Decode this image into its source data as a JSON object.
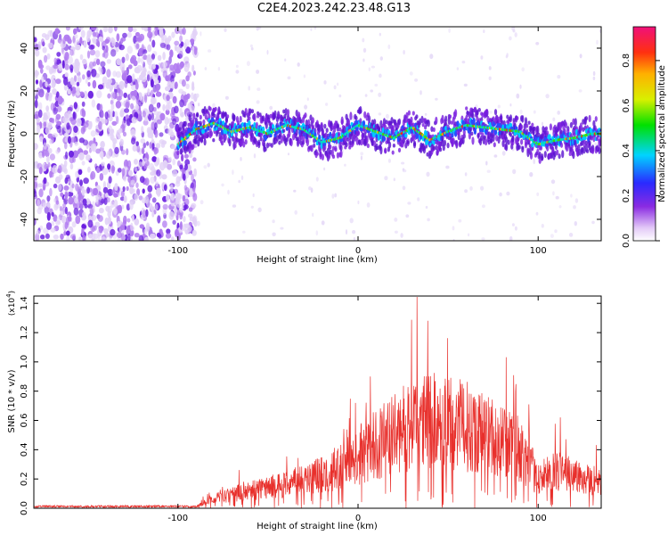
{
  "title": "C2E4.2023.242.23.48.G13",
  "colors": {
    "snr_line": "#e8302c",
    "frame": "#000000",
    "spec_low": "#d9c8f5",
    "spec_mid": "#7a1fe0",
    "spec_high": "#e8302c"
  },
  "chart_data": [
    {
      "type": "heatmap",
      "name": "spectrogram",
      "xlabel": "Height of straight line (km)",
      "ylabel": "Frequency (Hz)",
      "xlim": [
        -180,
        135
      ],
      "ylim": [
        -50,
        50
      ],
      "xticks": [
        -100,
        0,
        100
      ],
      "yticks": [
        -40,
        -20,
        0,
        20,
        40
      ],
      "signal_onset_km": -90,
      "ridge": {
        "x": [
          -100,
          -90,
          -80,
          -70,
          -60,
          -50,
          -40,
          -30,
          -20,
          -10,
          0,
          10,
          20,
          30,
          40,
          50,
          60,
          70,
          80,
          90,
          100,
          110,
          120,
          130
        ],
        "freq": [
          -5,
          2,
          5,
          1,
          3,
          0,
          4,
          2,
          -4,
          -2,
          4,
          1,
          -2,
          3,
          -3,
          1,
          4,
          3,
          2,
          1,
          -5,
          -3,
          -2,
          0
        ]
      },
      "colorbar": {
        "label": "Normalized spectral amplitude",
        "ticks": [
          "0.0",
          "0.2",
          "0.4",
          "0.6",
          "0.8"
        ],
        "range": [
          0,
          0.95
        ]
      }
    },
    {
      "type": "line",
      "name": "snr",
      "xlabel": "Height of straight line (km)",
      "ylabel": "SNR (10 * v/v)",
      "exponent_label": "(x10",
      "exponent_value": "4",
      "exponent_close": ")",
      "xlim": [
        -180,
        135
      ],
      "ylim": [
        0,
        1.45
      ],
      "xticks": [
        -100,
        0,
        100
      ],
      "yticks": [
        "0.0",
        "0.2",
        "0.4",
        "0.6",
        "0.8",
        "1.0",
        "1.2",
        "1.4"
      ],
      "envelope": {
        "x": [
          -180,
          -150,
          -120,
          -100,
          -90,
          -80,
          -70,
          -60,
          -50,
          -40,
          -30,
          -20,
          -10,
          0,
          10,
          20,
          30,
          40,
          50,
          60,
          70,
          80,
          90,
          95,
          100,
          110,
          120,
          130,
          135
        ],
        "y": [
          0.005,
          0.008,
          0.01,
          0.012,
          0.015,
          0.08,
          0.12,
          0.15,
          0.18,
          0.2,
          0.25,
          0.3,
          0.35,
          0.45,
          0.55,
          0.62,
          0.72,
          0.75,
          0.72,
          0.7,
          0.65,
          0.58,
          0.5,
          0.38,
          0.25,
          0.32,
          0.28,
          0.25,
          0.2
        ]
      }
    }
  ]
}
